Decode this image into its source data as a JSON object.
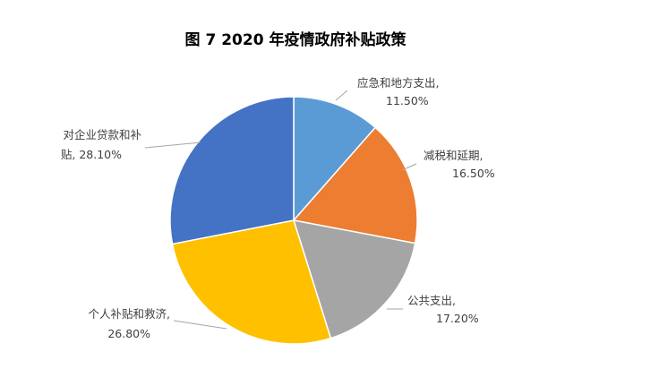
{
  "chart_data": {
    "type": "pie",
    "title": "图 7    2020 年疫情政府补贴政策",
    "slices": [
      {
        "category": "应急和地方支出",
        "value": 11.5,
        "label_line1": "应急和地方支出,",
        "label_line2": "11.50%",
        "color": "#5b9bd5"
      },
      {
        "category": "减税和延期",
        "value": 16.5,
        "label_line1": "减税和延期,",
        "label_line2": "16.50%",
        "color": "#ed7d31"
      },
      {
        "category": "公共支出",
        "value": 17.2,
        "label_line1": "公共支出,",
        "label_line2": "17.20%",
        "color": "#a5a5a5"
      },
      {
        "category": "个人补贴和救济",
        "value": 26.8,
        "label_line1": "个人补贴和救济,",
        "label_line2": "26.80%",
        "color": "#ffc000"
      },
      {
        "category": "对企业贷款和补贴",
        "value": 28.1,
        "label_line1": "对企业贷款和补",
        "label_line2": "贴, 28.10%",
        "color": "#4472c4"
      }
    ],
    "legend": "none",
    "label_color": "#404040",
    "leader_color": "#a6a6a6"
  }
}
